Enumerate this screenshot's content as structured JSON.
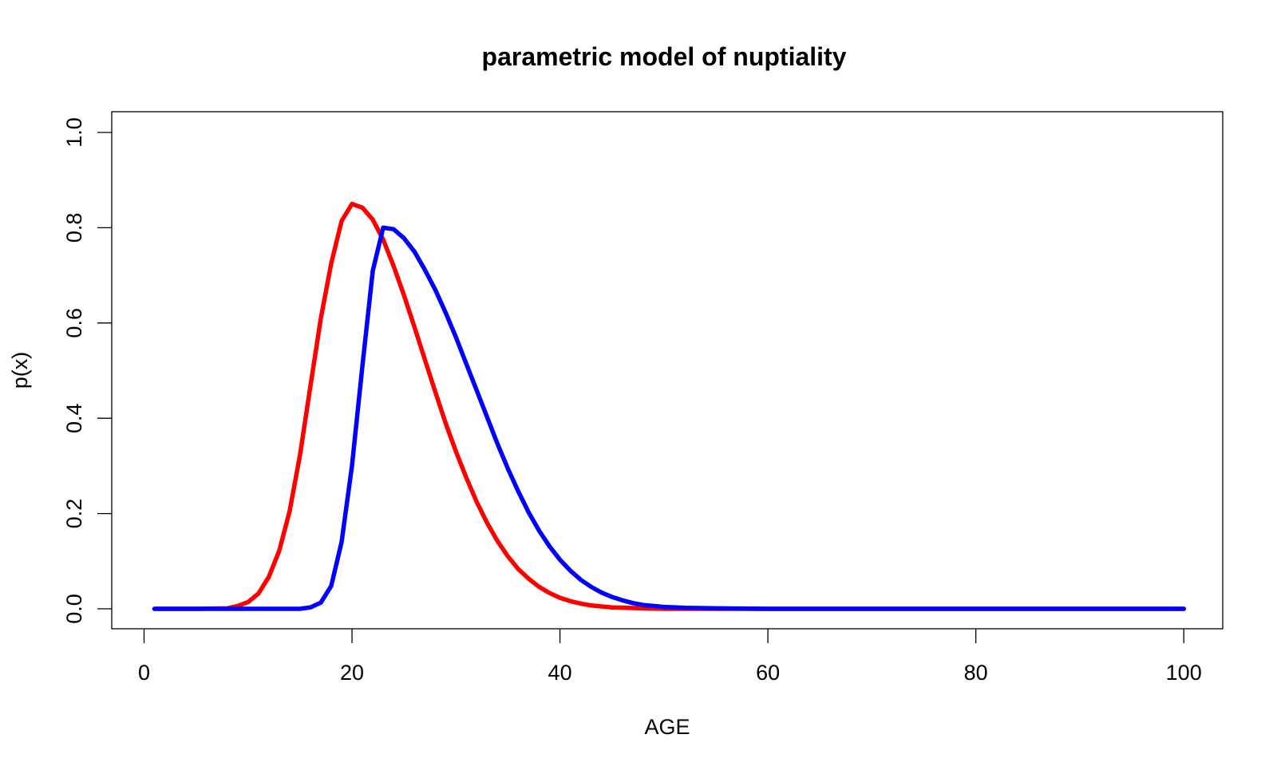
{
  "chart_data": {
    "type": "line",
    "title": "parametric model of nuptiality",
    "xlabel": "AGE",
    "ylabel": "p(x)",
    "xlim": [
      1,
      100
    ],
    "ylim": [
      0,
      1
    ],
    "x_ticks": [
      0,
      20,
      40,
      60,
      80,
      100
    ],
    "x_tick_labels": [
      "0",
      "20",
      "40",
      "60",
      "80",
      "100"
    ],
    "y_ticks": [
      0,
      0.2,
      0.4,
      0.6,
      0.8,
      1
    ],
    "y_tick_labels": [
      "0.0",
      "0.2",
      "0.4",
      "0.6",
      "0.8",
      "1.0"
    ],
    "grid": false,
    "legend": "none",
    "series": [
      {
        "color": "#ff0000",
        "x": [
          1,
          5,
          8,
          9,
          10,
          11,
          12,
          13,
          14,
          15,
          16,
          17,
          18,
          19,
          20,
          21,
          22,
          23,
          24,
          25,
          26,
          27,
          28,
          29,
          30,
          31,
          32,
          33,
          34,
          35,
          36,
          37,
          38,
          39,
          40,
          41,
          42,
          43,
          45,
          48,
          50,
          55,
          60,
          100
        ],
        "values": [
          0,
          0,
          0.001,
          0.006,
          0.014,
          0.032,
          0.067,
          0.122,
          0.205,
          0.323,
          0.467,
          0.61,
          0.725,
          0.814,
          0.85,
          0.842,
          0.817,
          0.775,
          0.72,
          0.658,
          0.592,
          0.524,
          0.456,
          0.39,
          0.33,
          0.275,
          0.224,
          0.18,
          0.142,
          0.11,
          0.083,
          0.063,
          0.046,
          0.033,
          0.023,
          0.016,
          0.011,
          0.007,
          0.003,
          0.001,
          0.0,
          0,
          0,
          0
        ]
      },
      {
        "color": "#0000ff",
        "x": [
          1,
          10,
          15,
          16,
          17,
          18,
          19,
          20,
          21,
          22,
          23,
          24,
          25,
          26,
          27,
          28,
          29,
          30,
          31,
          32,
          33,
          34,
          35,
          36,
          37,
          38,
          39,
          40,
          41,
          42,
          43,
          44,
          45,
          46,
          47,
          48,
          50,
          52,
          55,
          60,
          100
        ],
        "values": [
          0,
          0,
          0,
          0.003,
          0.013,
          0.048,
          0.14,
          0.3,
          0.51,
          0.71,
          0.8,
          0.797,
          0.778,
          0.75,
          0.712,
          0.67,
          0.622,
          0.57,
          0.514,
          0.458,
          0.402,
          0.346,
          0.294,
          0.246,
          0.202,
          0.164,
          0.131,
          0.103,
          0.08,
          0.061,
          0.046,
          0.034,
          0.025,
          0.018,
          0.012,
          0.008,
          0.004,
          0.002,
          0.001,
          0,
          0
        ]
      }
    ]
  }
}
